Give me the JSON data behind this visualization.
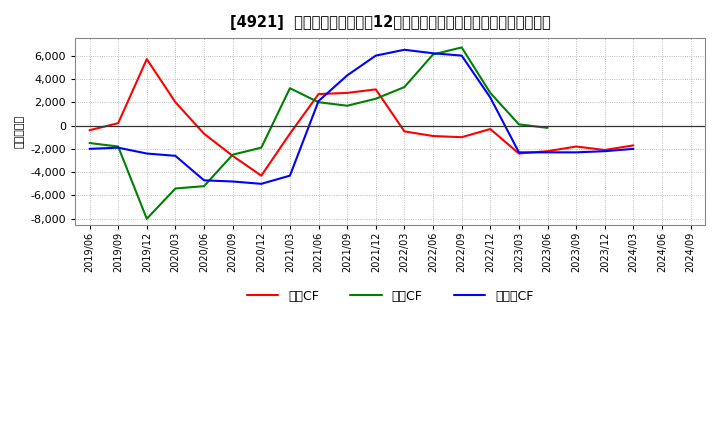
{
  "title": "[4921]  キャッシュフローの12か月移動合計の対前年同期増減額の推移",
  "ylabel": "（百万円）",
  "background_color": "#ffffff",
  "plot_bg_color": "#ffffff",
  "grid_color": "#aaaaaa",
  "xlabels": [
    "2019/06",
    "2019/09",
    "2019/12",
    "2020/03",
    "2020/06",
    "2020/09",
    "2020/12",
    "2021/03",
    "2021/06",
    "2021/09",
    "2021/12",
    "2022/03",
    "2022/06",
    "2022/09",
    "2022/12",
    "2023/03",
    "2023/06",
    "2023/09",
    "2023/12",
    "2024/03",
    "2024/06",
    "2024/09"
  ],
  "operating_cf": [
    -400,
    200,
    5700,
    2000,
    -700,
    -2600,
    -4300,
    -700,
    2700,
    2800,
    3100,
    -500,
    -900,
    -1000,
    -300,
    -2400,
    -2200,
    -1800,
    -2100,
    -1700,
    null,
    null
  ],
  "investing_cf": [
    -1500,
    -1800,
    -8000,
    -5400,
    -5200,
    -2500,
    -1900,
    3200,
    2000,
    1700,
    2300,
    3300,
    6100,
    6700,
    2800,
    100,
    -200,
    null,
    null,
    null,
    null,
    null
  ],
  "free_cf": [
    -2000,
    -1900,
    -2400,
    -2600,
    -4700,
    -4800,
    -5000,
    -4300,
    2100,
    4300,
    6000,
    6500,
    6200,
    6000,
    2400,
    -2300,
    -2300,
    -2300,
    -2200,
    -2000,
    null,
    null
  ],
  "ylim": [
    -8500,
    7500
  ],
  "yticks": [
    -8000,
    -6000,
    -4000,
    -2000,
    0,
    2000,
    4000,
    6000
  ],
  "line_colors": {
    "operating": "#ff0000",
    "investing": "#008000",
    "free": "#0000ff"
  },
  "legend_labels": [
    "営業CF",
    "投資CF",
    "フリーCF"
  ]
}
